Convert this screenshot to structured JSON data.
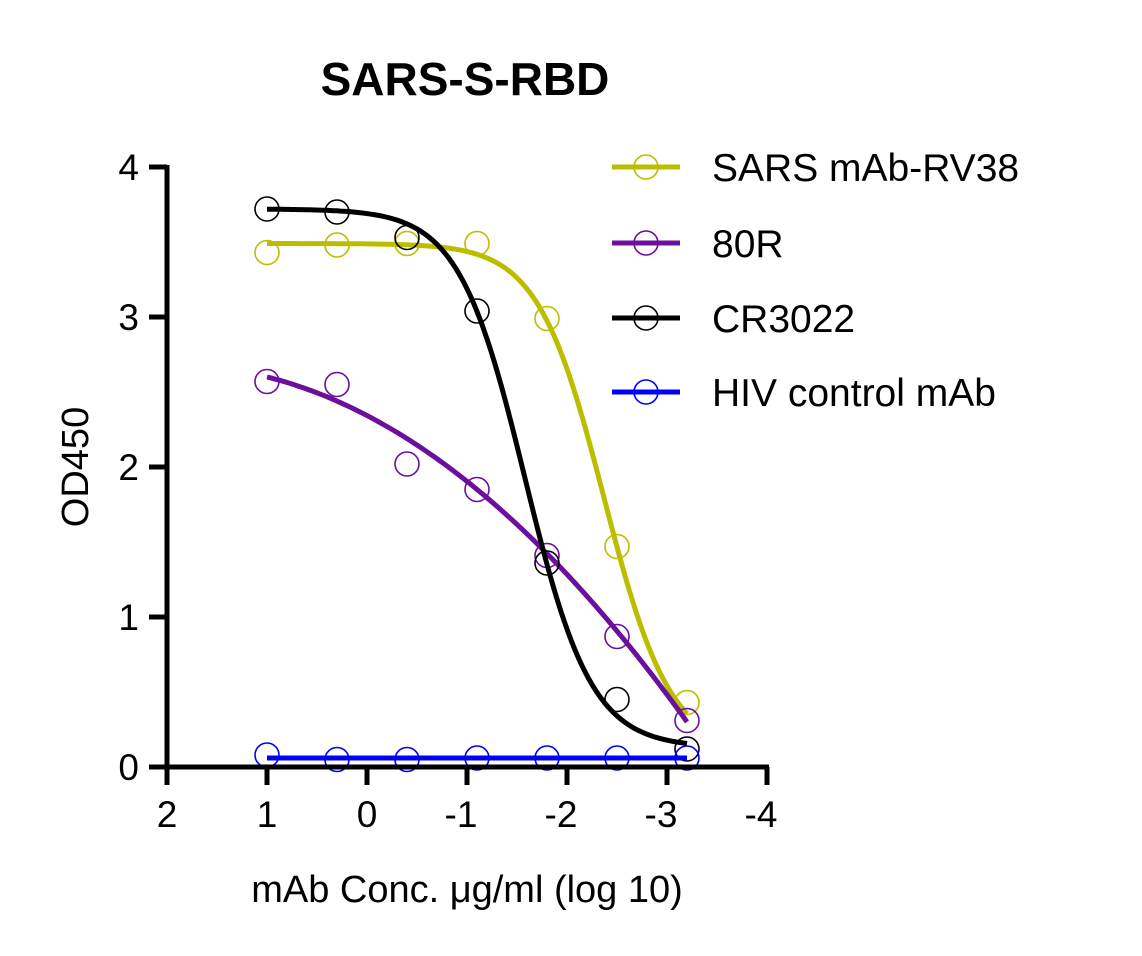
{
  "chart_data": {
    "type": "scatter",
    "title": "SARS-S-RBD",
    "xlabel": "mAb Conc. μg/ml (log 10)",
    "ylabel": "OD450",
    "xlim": [
      2,
      -4
    ],
    "ylim": [
      0,
      4
    ],
    "x_reversed": true,
    "xticks": [
      "2",
      "1",
      "0",
      "-1",
      "-2",
      "-3",
      "-4"
    ],
    "xtick_values": [
      2,
      1,
      0,
      -1,
      -2,
      -3,
      -4
    ],
    "yticks": [
      "0",
      "1",
      "2",
      "3",
      "4"
    ],
    "ytick_values": [
      0,
      1,
      2,
      3,
      4
    ],
    "grid": false,
    "legend_position": "top-right",
    "x": [
      1,
      0.3,
      -0.4,
      -1.1,
      -1.8,
      -2.5,
      -3.2
    ],
    "series": [
      {
        "name": "SARS mAb-RV38",
        "color": "#bdbd00",
        "values": [
          3.43,
          3.48,
          3.49,
          3.49,
          2.99,
          1.47,
          0.43
        ],
        "fit": {
          "model": "4PL",
          "top": 3.49,
          "bottom": 0.1,
          "logEC50": -2.37,
          "hill": 1.31
        }
      },
      {
        "name": "80R",
        "color": "#6b0f9c",
        "values": [
          2.57,
          2.55,
          2.02,
          1.85,
          1.41,
          0.87,
          0.31
        ],
        "fit": {
          "model": "quadratic",
          "coeffs": [
            2.343,
            0.348,
            -0.0907
          ]
        }
      },
      {
        "name": "CR3022",
        "color": "#000000",
        "values": [
          3.72,
          3.7,
          3.53,
          3.04,
          1.36,
          0.45,
          0.12
        ],
        "fit": {
          "model": "4PL",
          "top": 3.72,
          "bottom": 0.13,
          "logEC50": -1.58,
          "hill": 1.31
        }
      },
      {
        "name": "HIV control mAb",
        "color": "#0000ff",
        "values": [
          0.08,
          0.05,
          0.05,
          0.06,
          0.06,
          0.06,
          0.06
        ],
        "fit": {
          "model": "constant",
          "value": 0.06
        }
      }
    ]
  }
}
